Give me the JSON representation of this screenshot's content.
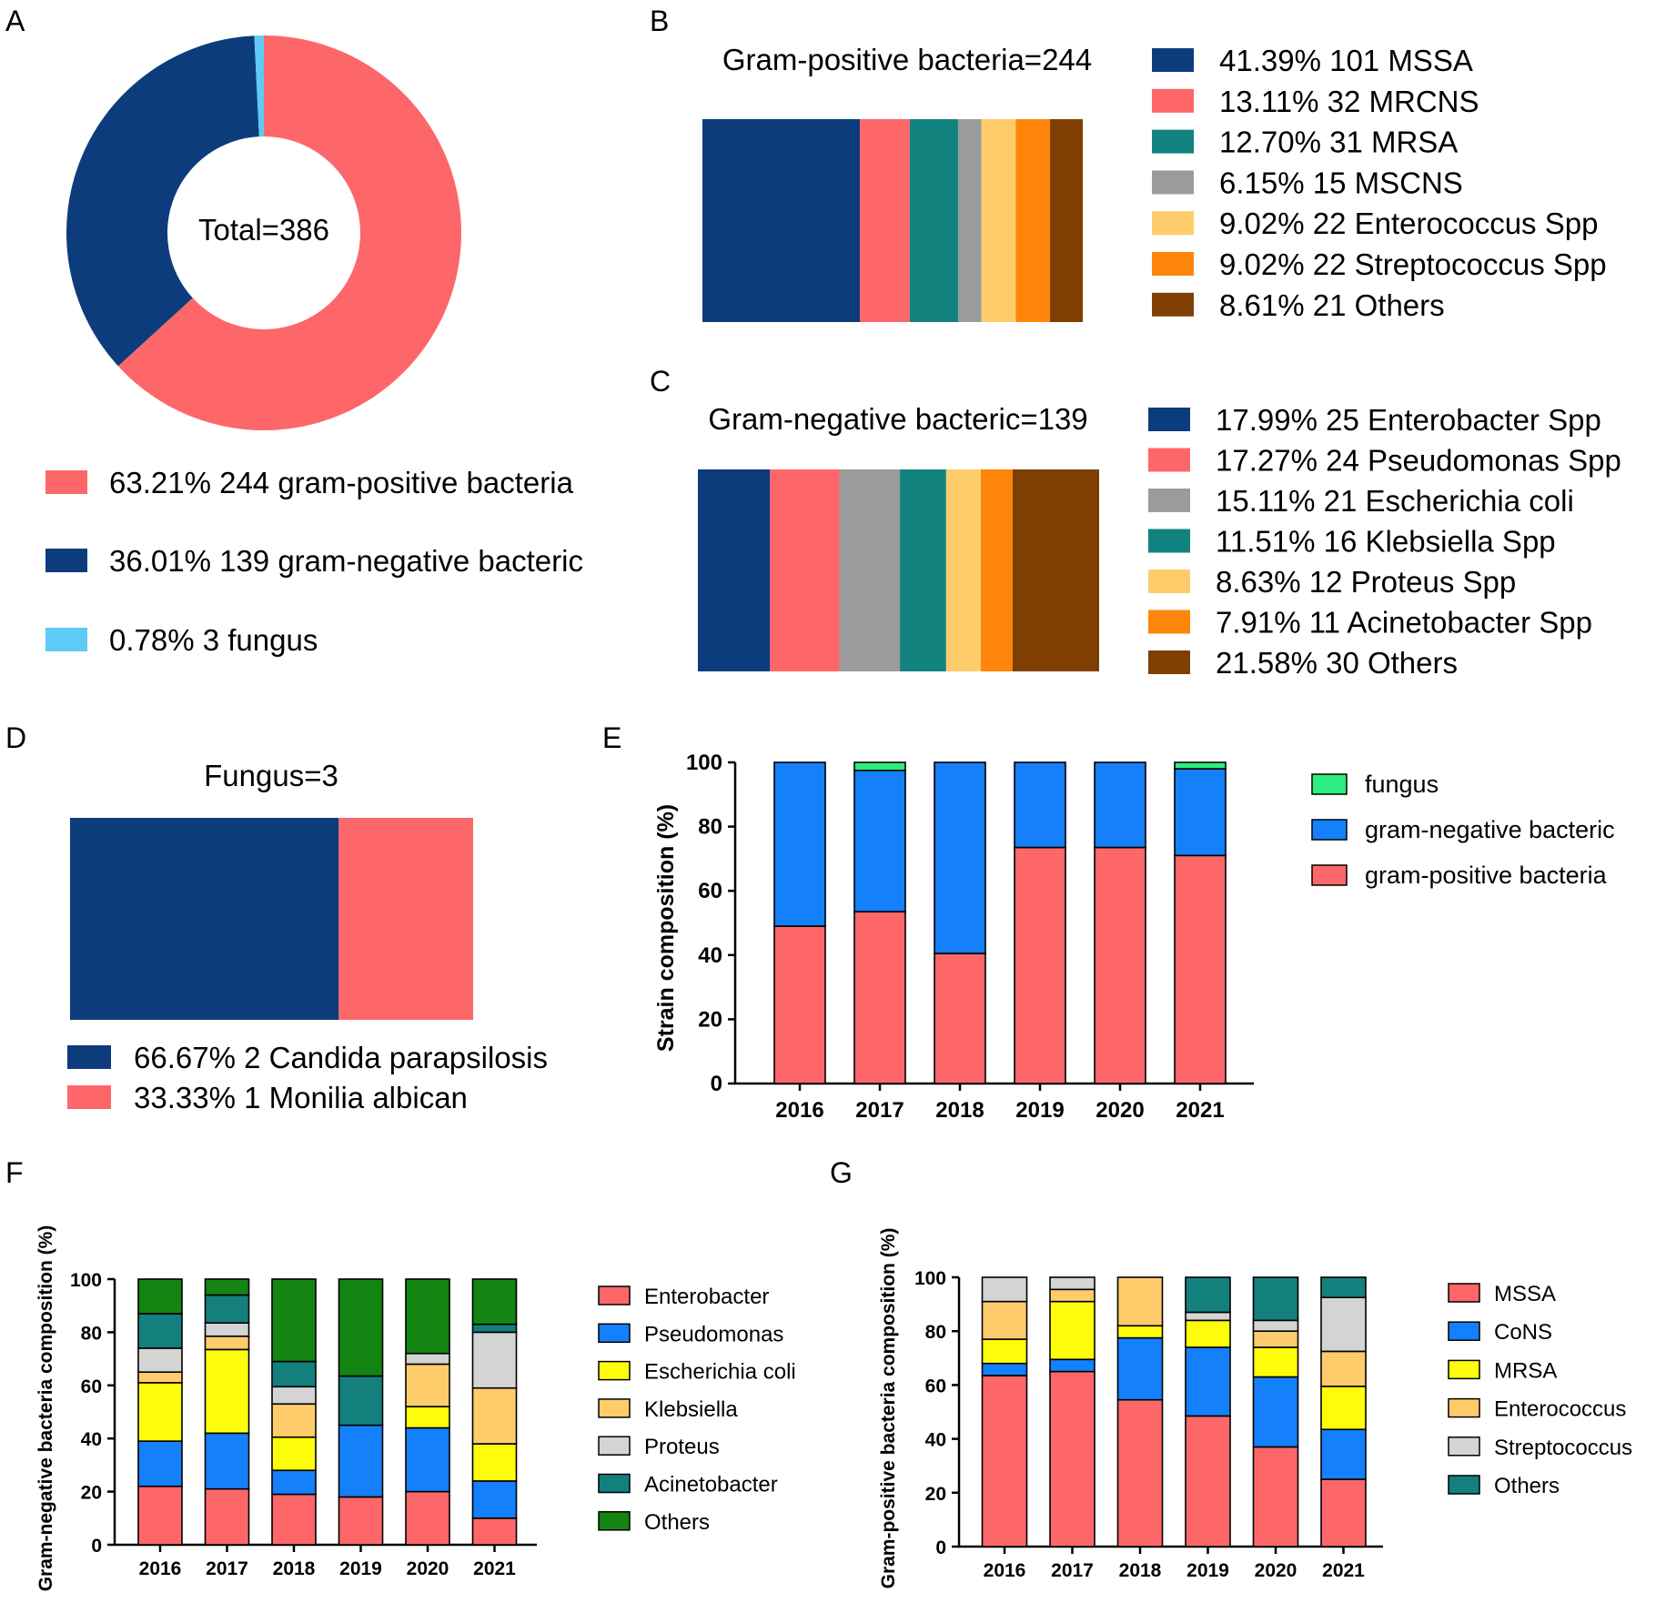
{
  "colors": {
    "red": "#fd6769",
    "navy": "#0c3c7c",
    "lightblue": "#5ccbf5",
    "teal": "#12827e",
    "gray": "#9b9b9b",
    "lightorange": "#fecc6b",
    "orange": "#fd860a",
    "brown": "#7f3f02",
    "blue": "#1480fb",
    "green": "#2ded80",
    "yellow": "#fdfc0a",
    "lightgray": "#d4d4d4",
    "darkgreen": "#148412",
    "darkteal": "#13807d"
  },
  "panel_labels": [
    "A",
    "B",
    "C",
    "D",
    "E",
    "F",
    "G"
  ],
  "chart_data": [
    {
      "id": "A",
      "type": "pie",
      "center_text": "Total=386",
      "slices": [
        {
          "label": "gram-positive bacteria",
          "value": 244,
          "percent": "63.21%",
          "color": "#fd6769",
          "legend": "63.21%  244 gram-positive bacteria"
        },
        {
          "label": "gram-negative bacteric",
          "value": 139,
          "percent": "36.01%",
          "color": "#0c3c7c",
          "legend": "36.01%  139 gram-negative bacteric"
        },
        {
          "label": "fungus",
          "value": 3,
          "percent": "0.78%",
          "color": "#5ccbf5",
          "legend": "0.78%  3 fungus"
        }
      ]
    },
    {
      "id": "B",
      "type": "bar",
      "orientation": "horizontal-stacked",
      "title": "Gram-positive bacteria=244",
      "segments": [
        {
          "label": "MSSA",
          "value": 101,
          "percent": "41.39%",
          "color": "#0c3c7c",
          "legend": "41.39%  101 MSSA"
        },
        {
          "label": "MRCNS",
          "value": 32,
          "percent": "13.11%",
          "color": "#fd6769",
          "legend": "13.11%  32 MRCNS"
        },
        {
          "label": "MRSA",
          "value": 31,
          "percent": "12.70%",
          "color": "#12827e",
          "legend": "12.70%  31 MRSA"
        },
        {
          "label": "MSCNS",
          "value": 15,
          "percent": "6.15%",
          "color": "#9b9b9b",
          "legend": "6.15%  15 MSCNS"
        },
        {
          "label": "Enterococcus Spp",
          "value": 22,
          "percent": "9.02%",
          "color": "#fecc6b",
          "legend": "9.02%  22 Enterococcus Spp"
        },
        {
          "label": "Streptococcus Spp",
          "value": 22,
          "percent": "9.02%",
          "color": "#fd860a",
          "legend": "9.02%  22 Streptococcus Spp"
        },
        {
          "label": "Others",
          "value": 21,
          "percent": "8.61%",
          "color": "#7f3f02",
          "legend": "8.61%  21 Others"
        }
      ]
    },
    {
      "id": "C",
      "type": "bar",
      "orientation": "horizontal-stacked",
      "title": "Gram-negative bacteric=139",
      "segments": [
        {
          "label": "Enterobacter Spp",
          "value": 25,
          "percent": "17.99%",
          "color": "#0c3c7c",
          "legend": "17.99%  25 Enterobacter Spp"
        },
        {
          "label": "Pseudomonas Spp",
          "value": 24,
          "percent": "17.27%",
          "color": "#fd6769",
          "legend": "17.27%  24 Pseudomonas Spp"
        },
        {
          "label": "Escherichia coli",
          "value": 21,
          "percent": "15.11%",
          "color": "#9b9b9b",
          "legend": "15.11%  21 Escherichia coli"
        },
        {
          "label": "Klebsiella Spp",
          "value": 16,
          "percent": "11.51%",
          "color": "#12827e",
          "legend": "11.51%  16 Klebsiella Spp"
        },
        {
          "label": "Proteus Spp",
          "value": 12,
          "percent": "8.63%",
          "color": "#fecc6b",
          "legend": "8.63%  12 Proteus Spp"
        },
        {
          "label": "Acinetobacter Spp",
          "value": 11,
          "percent": "7.91%",
          "color": "#fd860a",
          "legend": "7.91%  11 Acinetobacter Spp"
        },
        {
          "label": "Others",
          "value": 30,
          "percent": "21.58%",
          "color": "#7f3f02",
          "legend": "21.58%  30 Others"
        }
      ]
    },
    {
      "id": "D",
      "type": "bar",
      "orientation": "horizontal-stacked",
      "title": "Fungus=3",
      "segments": [
        {
          "label": "Candida parapsilosis",
          "value": 2,
          "percent": "66.67%",
          "color": "#0c3c7c",
          "legend": "66.67%  2 Candida parapsilosis"
        },
        {
          "label": "Monilia albican",
          "value": 1,
          "percent": "33.33%",
          "color": "#fd6769",
          "legend": "33.33%  1 Monilia albican"
        }
      ]
    },
    {
      "id": "E",
      "type": "bar",
      "orientation": "vertical-stacked",
      "ylabel": "Strain composition (%)",
      "xlabel": "",
      "ylim": [
        0,
        100
      ],
      "yticks": [
        "0",
        "20",
        "40",
        "60",
        "80",
        "100"
      ],
      "categories": [
        "2016",
        "2017",
        "2018",
        "2019",
        "2020",
        "2021"
      ],
      "series": [
        {
          "name": "gram-positive bacteria",
          "color": "#fd6769",
          "values": [
            49,
            53.5,
            40.5,
            73.5,
            73.5,
            71
          ]
        },
        {
          "name": "gram-negative bacteric",
          "color": "#1480fb",
          "values": [
            51,
            44,
            59.5,
            26.5,
            26.5,
            27
          ]
        },
        {
          "name": "fungus",
          "color": "#2ded80",
          "values": [
            0,
            2.5,
            0,
            0,
            0,
            2
          ]
        }
      ],
      "legend_order": [
        "fungus",
        "gram-negative bacteric",
        "gram-positive bacteria"
      ]
    },
    {
      "id": "F",
      "type": "bar",
      "orientation": "vertical-stacked",
      "ylabel": "Gram-negative bacteria composition (%)",
      "xlabel": "",
      "ylim": [
        0,
        100
      ],
      "yticks": [
        "0",
        "20",
        "40",
        "60",
        "80",
        "100"
      ],
      "categories": [
        "2016",
        "2017",
        "2018",
        "2019",
        "2020",
        "2021"
      ],
      "series": [
        {
          "name": "Enterobacter",
          "color": "#fd6769",
          "values": [
            22,
            21,
            19,
            18,
            20,
            10
          ]
        },
        {
          "name": "Pseudomonas",
          "color": "#1480fb",
          "values": [
            17,
            21,
            9,
            27,
            24,
            14
          ]
        },
        {
          "name": "Escherichia coli",
          "color": "#fdfc0a",
          "values": [
            22,
            31.5,
            12.5,
            0,
            8,
            14
          ]
        },
        {
          "name": "Klebsiella",
          "color": "#fecc6b",
          "values": [
            4,
            5,
            12.5,
            0,
            16,
            21
          ]
        },
        {
          "name": "Proteus",
          "color": "#d4d4d4",
          "values": [
            9,
            5,
            6.5,
            0,
            4,
            21
          ]
        },
        {
          "name": "Acinetobacter",
          "color": "#13807d",
          "values": [
            13,
            10.5,
            9.5,
            18.5,
            0,
            3
          ]
        },
        {
          "name": "Others",
          "color": "#148412",
          "values": [
            13,
            6,
            31,
            36.5,
            28,
            17
          ]
        }
      ],
      "legend_order": [
        "Enterobacter",
        "Pseudomonas",
        "Escherichia coli",
        "Klebsiella",
        "Proteus",
        "Acinetobacter",
        "Others"
      ]
    },
    {
      "id": "G",
      "type": "bar",
      "orientation": "vertical-stacked",
      "ylabel": "Gram-positive bacteria composition (%)",
      "xlabel": "",
      "ylim": [
        0,
        100
      ],
      "yticks": [
        "0",
        "20",
        "40",
        "60",
        "80",
        "100"
      ],
      "categories": [
        "2016",
        "2017",
        "2018",
        "2019",
        "2020",
        "2021"
      ],
      "series": [
        {
          "name": "MSSA",
          "color": "#fd6769",
          "values": [
            63.5,
            65,
            54.5,
            48.5,
            37,
            25
          ]
        },
        {
          "name": "CoNS",
          "color": "#1480fb",
          "values": [
            4.5,
            4.5,
            23,
            25.5,
            26,
            18.5
          ]
        },
        {
          "name": "MRSA",
          "color": "#fdfc0a",
          "values": [
            9,
            21.5,
            4.5,
            10,
            11,
            16
          ]
        },
        {
          "name": "Enterococcus",
          "color": "#fecc6b",
          "values": [
            14,
            4.5,
            18,
            0,
            6,
            13
          ]
        },
        {
          "name": "Streptococcus",
          "color": "#d4d4d4",
          "values": [
            9,
            4.5,
            0,
            3,
            4,
            20
          ]
        },
        {
          "name": "Others",
          "color": "#13807d",
          "values": [
            0,
            0,
            0,
            13,
            16,
            7.5
          ]
        }
      ],
      "legend_order": [
        "MSSA",
        "CoNS",
        "MRSA",
        "Enterococcus",
        "Streptococcus",
        "Others"
      ]
    }
  ]
}
